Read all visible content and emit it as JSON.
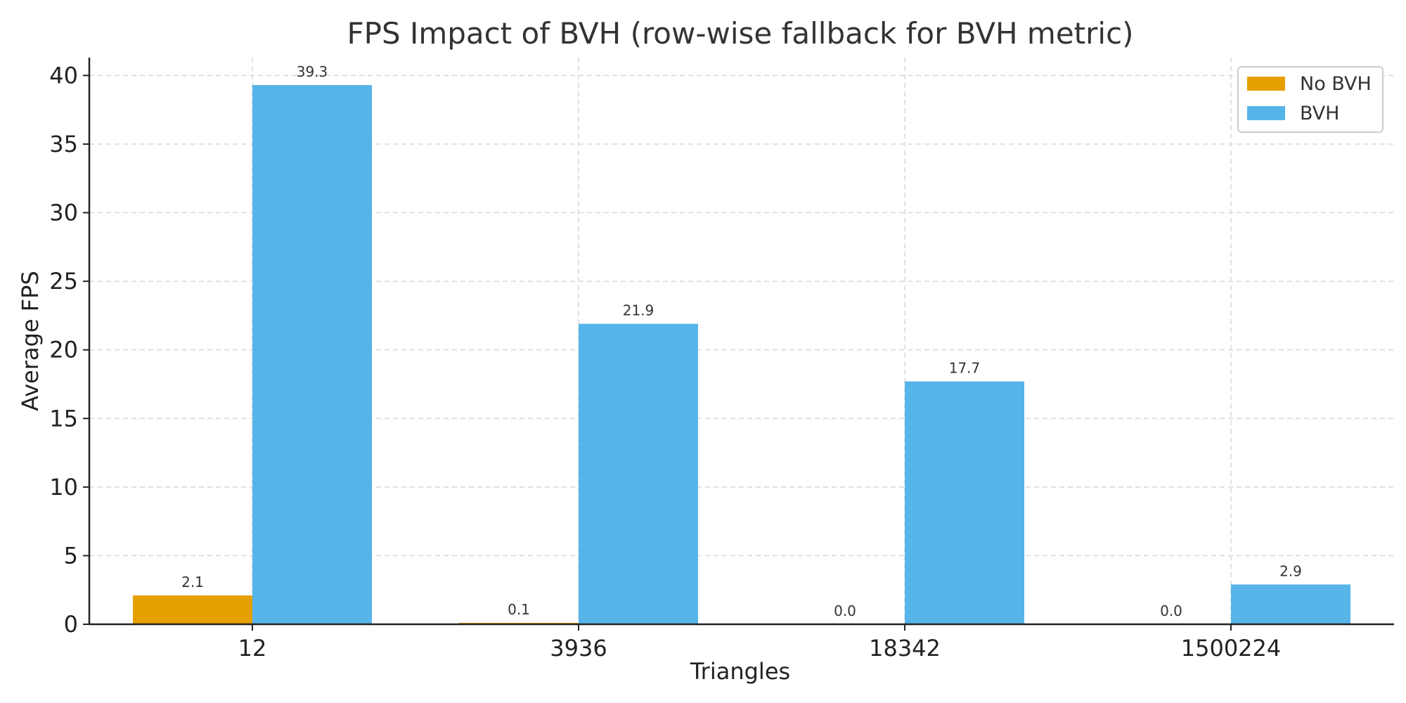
{
  "chart_data": {
    "type": "bar",
    "title": "FPS Impact of BVH (row-wise fallback for BVH metric)",
    "xlabel": "Triangles",
    "ylabel": "Average FPS",
    "categories": [
      "12",
      "3936",
      "18342",
      "1500224"
    ],
    "series": [
      {
        "name": "No BVH",
        "color": "#E69F00",
        "values": [
          2.1,
          0.1,
          0.0,
          0.0
        ],
        "value_labels": [
          "2.1",
          "0.1",
          "0.0",
          "0.0"
        ]
      },
      {
        "name": "BVH",
        "color": "#56B4E9",
        "values": [
          39.3,
          21.9,
          17.7,
          2.9
        ],
        "value_labels": [
          "39.3",
          "21.9",
          "17.7",
          "2.9"
        ]
      }
    ],
    "ylim": [
      0,
      41.3
    ],
    "yticks": [
      "0",
      "5",
      "10",
      "15",
      "20",
      "25",
      "30",
      "35",
      "40"
    ],
    "grid": true,
    "legend_position": "top-right"
  }
}
